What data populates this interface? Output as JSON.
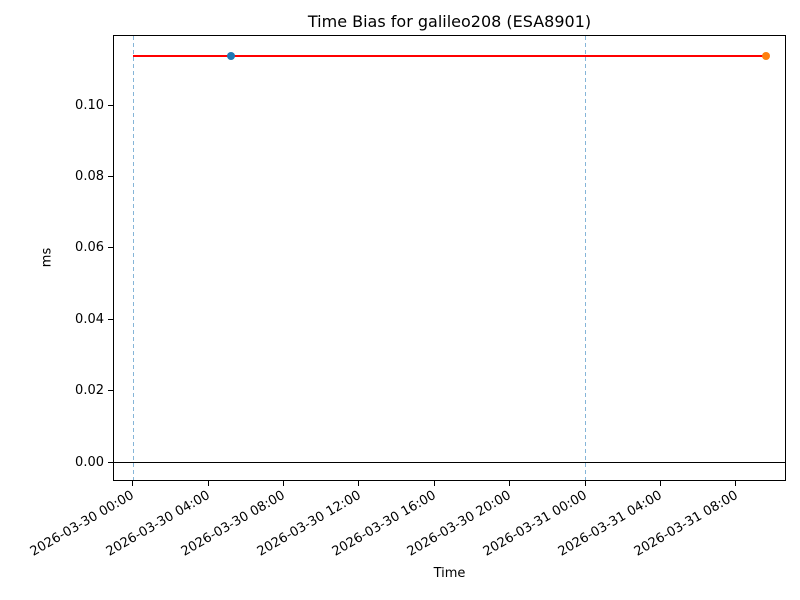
{
  "chart_data": {
    "type": "line",
    "title": "Time Bias for galileo208 (ESA8901)",
    "xlabel": "Time",
    "ylabel": "ms",
    "x_unit_hours_since": "2026-03-30 00:00",
    "xlim_hours": [
      -1.04,
      34.66
    ],
    "ylim": [
      -0.0052,
      0.1196
    ],
    "grid": false,
    "legend": "none",
    "y_ticks": [
      {
        "value": 0.0,
        "label": "0.00"
      },
      {
        "value": 0.02,
        "label": "0.02"
      },
      {
        "value": 0.04,
        "label": "0.04"
      },
      {
        "value": 0.06,
        "label": "0.06"
      },
      {
        "value": 0.08,
        "label": "0.08"
      },
      {
        "value": 0.1,
        "label": "0.10"
      }
    ],
    "x_ticks": [
      {
        "hours": 0,
        "label": "2026-03-30 00:00"
      },
      {
        "hours": 4,
        "label": "2026-03-30 04:00"
      },
      {
        "hours": 8,
        "label": "2026-03-30 08:00"
      },
      {
        "hours": 12,
        "label": "2026-03-30 12:00"
      },
      {
        "hours": 16,
        "label": "2026-03-30 16:00"
      },
      {
        "hours": 20,
        "label": "2026-03-30 20:00"
      },
      {
        "hours": 24,
        "label": "2026-03-31 00:00"
      },
      {
        "hours": 28,
        "label": "2026-03-31 04:00"
      },
      {
        "hours": 32,
        "label": "2026-03-31 08:00"
      }
    ],
    "zero_line": {
      "y": 0,
      "color": "#000000"
    },
    "day_boundary_lines": {
      "hours": [
        0,
        24
      ],
      "color": "#85b5d8",
      "style": "dashed"
    },
    "bias_line": {
      "y_ms": 0.1136,
      "x_start_hours": 0,
      "x_end_hours": 33.6,
      "color": "#ff0000"
    },
    "markers": [
      {
        "name": "first-point-marker",
        "x_hours": 5.2,
        "y_ms": 0.1136,
        "color": "#1f77b4"
      },
      {
        "name": "last-point-marker",
        "x_hours": 33.6,
        "y_ms": 0.1136,
        "color": "#ff7f0e"
      }
    ]
  }
}
